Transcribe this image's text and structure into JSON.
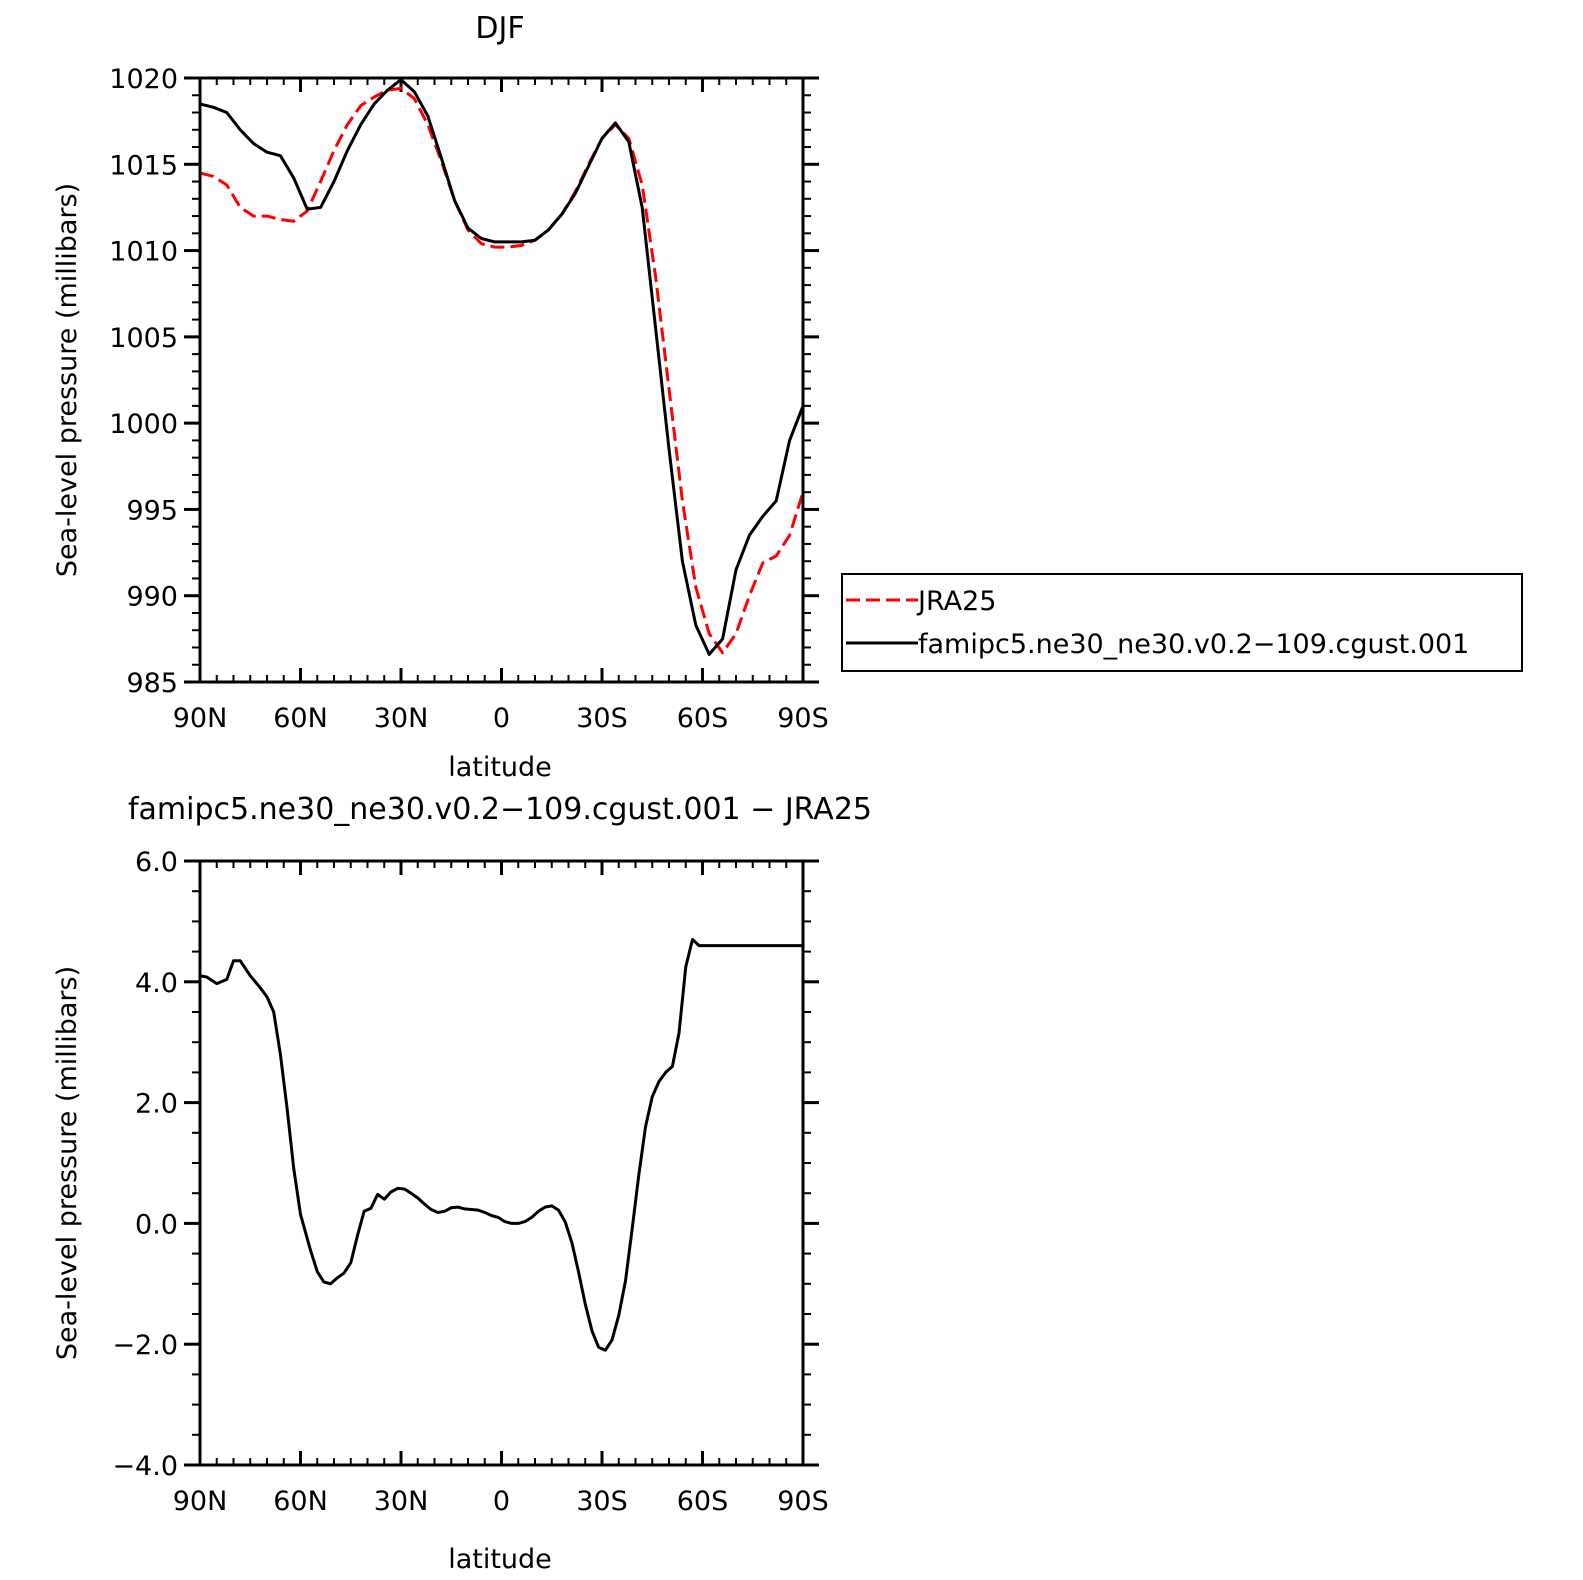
{
  "chart_data": [
    {
      "type": "line",
      "title": "DJF",
      "xlabel": "latitude",
      "ylabel": "Sea-level pressure (millibars)",
      "xlim": [
        90,
        -90
      ],
      "ylim": [
        985,
        1020
      ],
      "xticks": [
        90,
        60,
        30,
        0,
        -30,
        -60,
        -90
      ],
      "xtick_labels": [
        "90N",
        "60N",
        "30N",
        "0",
        "30S",
        "60S",
        "90S"
      ],
      "yticks": [
        985,
        990,
        995,
        1000,
        1005,
        1010,
        1015,
        1020
      ],
      "ytick_labels": [
        "985",
        "990",
        "995",
        "1000",
        "1005",
        "1010",
        "1015",
        "1020"
      ],
      "legend": "right",
      "series": [
        {
          "name": "JRA25",
          "color": "#ff0000",
          "dash": "dashed",
          "x": [
            90,
            86,
            82,
            78,
            74,
            70,
            66,
            62,
            58,
            54,
            50,
            46,
            42,
            38,
            34,
            30,
            26,
            22,
            18,
            14,
            10,
            6,
            2,
            -2,
            -6,
            -10,
            -14,
            -18,
            -22,
            -26,
            -30,
            -34,
            -38,
            -42,
            -46,
            -50,
            -54,
            -58,
            -62,
            -66,
            -70,
            -74,
            -78,
            -82,
            -86,
            -90
          ],
          "y": [
            1014.5,
            1014.3,
            1013.8,
            1012.5,
            1012.0,
            1012.0,
            1011.8,
            1011.7,
            1012.3,
            1014.0,
            1015.8,
            1017.3,
            1018.4,
            1018.9,
            1019.3,
            1019.4,
            1018.8,
            1017.3,
            1015.2,
            1012.9,
            1011.2,
            1010.4,
            1010.2,
            1010.2,
            1010.3,
            1010.6,
            1011.2,
            1012.1,
            1013.4,
            1015.0,
            1016.5,
            1017.3,
            1016.5,
            1013.8,
            1008.5,
            1002.0,
            995.5,
            990.5,
            987.8,
            986.7,
            987.8,
            990.0,
            991.9,
            992.3,
            993.5,
            996.0
          ]
        },
        {
          "name": "famipc5.ne30_ne30.v0.2-109.cgust.001",
          "color": "#000000",
          "dash": "solid",
          "x": [
            90,
            86,
            82,
            78,
            74,
            70,
            66,
            62,
            58,
            54,
            50,
            46,
            42,
            38,
            34,
            30,
            26,
            22,
            18,
            14,
            10,
            6,
            2,
            -2,
            -6,
            -10,
            -14,
            -18,
            -22,
            -26,
            -30,
            -34,
            -38,
            -42,
            -46,
            -50,
            -54,
            -58,
            -62,
            -66,
            -70,
            -74,
            -78,
            -82,
            -86,
            -90
          ],
          "y": [
            1018.5,
            1018.3,
            1018.0,
            1017.0,
            1016.2,
            1015.7,
            1015.5,
            1014.2,
            1012.4,
            1012.5,
            1014.0,
            1015.8,
            1017.3,
            1018.5,
            1019.3,
            1019.9,
            1019.2,
            1017.8,
            1015.4,
            1012.9,
            1011.3,
            1010.7,
            1010.5,
            1010.5,
            1010.5,
            1010.6,
            1011.2,
            1012.1,
            1013.3,
            1014.9,
            1016.5,
            1017.4,
            1016.3,
            1012.5,
            1005.5,
            998.5,
            992.0,
            988.3,
            986.6,
            987.5,
            991.5,
            993.5,
            994.6,
            995.5,
            999.0,
            1001.0
          ]
        }
      ]
    },
    {
      "type": "line",
      "title": "famipc5.ne30_ne30.v0.2−109.cgust.001  −  JRA25",
      "xlabel": "latitude",
      "ylabel": "Sea-level pressure (millibars)",
      "xlim": [
        90,
        -90
      ],
      "ylim": [
        -4.0,
        6.0
      ],
      "xticks": [
        90,
        60,
        30,
        0,
        -30,
        -60,
        -90
      ],
      "xtick_labels": [
        "90N",
        "60N",
        "30N",
        "0",
        "30S",
        "60S",
        "90S"
      ],
      "yticks": [
        -4.0,
        -2.0,
        0.0,
        2.0,
        4.0,
        6.0
      ],
      "ytick_labels": [
        "−4.0",
        "−2.0",
        "0.0",
        "2.0",
        "4.0",
        "6.0"
      ],
      "series": [
        {
          "color": "#000000",
          "dash": "solid",
          "x": [
            90,
            88,
            85,
            82,
            80,
            78,
            75,
            72,
            70,
            68,
            66,
            64,
            62,
            60,
            57,
            55,
            53,
            51,
            49,
            47,
            45,
            43,
            41,
            39,
            37,
            35,
            33,
            31,
            29,
            27,
            25,
            23,
            21,
            19,
            17,
            15,
            13,
            11,
            9,
            7,
            5,
            3,
            1,
            -1,
            -3,
            -5,
            -7,
            -9,
            -11,
            -13,
            -15,
            -17,
            -19,
            -21,
            -23,
            -25,
            -27,
            -29,
            -31,
            -33,
            -35,
            -37,
            -39,
            -41,
            -43,
            -45,
            -47,
            -49,
            -51,
            -53,
            -55,
            -57,
            -59,
            -61,
            -63,
            -65,
            -67,
            -69,
            -71,
            -73,
            -75,
            -77,
            -79,
            -81,
            -83,
            -85,
            -87,
            -89,
            -90
          ],
          "y": [
            4.1,
            4.08,
            3.97,
            4.04,
            4.35,
            4.35,
            4.1,
            3.9,
            3.75,
            3.5,
            2.8,
            1.9,
            0.9,
            0.15,
            -0.45,
            -0.8,
            -0.97,
            -1.0,
            -0.9,
            -0.82,
            -0.65,
            -0.2,
            0.2,
            0.25,
            0.48,
            0.4,
            0.52,
            0.58,
            0.57,
            0.5,
            0.42,
            0.32,
            0.23,
            0.18,
            0.2,
            0.26,
            0.27,
            0.24,
            0.23,
            0.22,
            0.18,
            0.13,
            0.1,
            0.03,
            0.0,
            0.0,
            0.03,
            0.1,
            0.2,
            0.27,
            0.29,
            0.22,
            0.03,
            -0.32,
            -0.8,
            -1.34,
            -1.78,
            -2.05,
            -2.1,
            -1.93,
            -1.52,
            -0.95,
            -0.1,
            0.8,
            1.6,
            2.1,
            2.35,
            2.5,
            2.6,
            3.15,
            4.25,
            4.7,
            4.6,
            4.6,
            4.6,
            4.6,
            4.6,
            4.6,
            4.6,
            4.6,
            4.6,
            4.6,
            4.6,
            4.6,
            4.6,
            4.6,
            4.6,
            4.6,
            4.6
          ]
        }
      ]
    }
  ],
  "legend": {
    "entries": [
      {
        "label": "JRA25",
        "color": "#ff0000",
        "dash": "dashed"
      },
      {
        "label": "famipc5.ne30_ne30.v0.2−109.cgust.001",
        "color": "#000000",
        "dash": "solid"
      }
    ]
  }
}
